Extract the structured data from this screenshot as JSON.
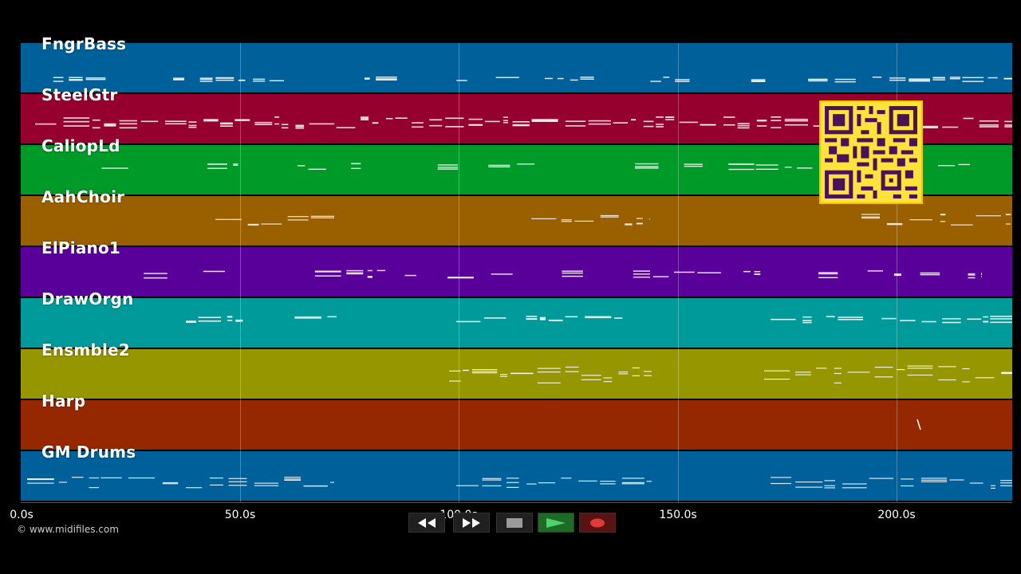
{
  "tracks": [
    {
      "name": "FngrBass",
      "color": "#00609a"
    },
    {
      "name": "SteelGtr",
      "color": "#96002e"
    },
    {
      "name": "CaliopLd",
      "color": "#009a28"
    },
    {
      "name": "AahChoir",
      "color": "#9a6000"
    },
    {
      "name": "ElPiano1",
      "color": "#5a009a"
    },
    {
      "name": "DrawOrgn",
      "color": "#009a9a"
    },
    {
      "name": "Ensmble2",
      "color": "#969600"
    },
    {
      "name": "Harp",
      "color": "#962800"
    },
    {
      "name": "GM Drums",
      "color": "#00609a"
    }
  ],
  "time_axis": {
    "ticks": [
      "0.0s",
      "50.0s",
      "100.0s",
      "150.0s",
      "200.0s"
    ],
    "tick_values": [
      0,
      50,
      100,
      150,
      200
    ],
    "max_seconds": 226
  },
  "copyright": "© www.midifiles.com",
  "transport": {
    "buttons": [
      {
        "name": "rewind-button",
        "icon": "rewind-icon"
      },
      {
        "name": "fast-forward-button",
        "icon": "fast-forward-icon"
      },
      {
        "name": "stop-button",
        "icon": "stop-icon"
      },
      {
        "name": "play-button",
        "icon": "play-icon"
      },
      {
        "name": "record-button",
        "icon": "record-icon"
      }
    ]
  },
  "qr_code": {
    "icon": "qr-code-icon",
    "color": "#ffe23b"
  }
}
